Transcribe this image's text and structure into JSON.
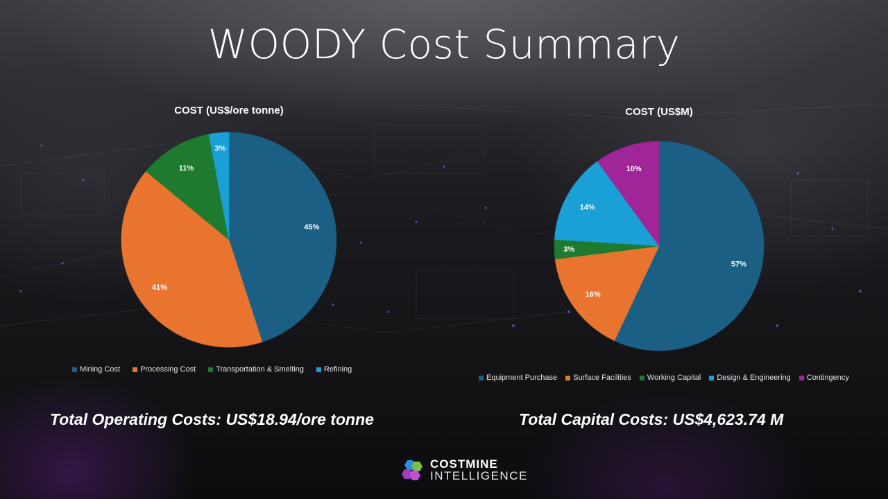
{
  "title": "WOODY Cost Summary",
  "totals": {
    "operating": "Total Operating Costs: US$18.94/ore tonne",
    "capital": "Total Capital Costs: US$4,623.74 M"
  },
  "logo": {
    "line1": "COSTMINE",
    "line2": "INTELLIGENCE",
    "icon": "costmine-hexagon-logo-icon"
  },
  "chart_data": [
    {
      "type": "pie",
      "title": "COST (US$/ore tonne)",
      "categories": [
        "Mining Cost",
        "Processing Cost",
        "Transportation & Smelting",
        "Refining"
      ],
      "values": [
        45,
        41,
        11,
        3
      ],
      "labels": [
        "45%",
        "41%",
        "11%",
        "3%"
      ],
      "colors": [
        "#1b5f84",
        "#e8742f",
        "#1e7a2e",
        "#1a9fd6"
      ],
      "legend": "bottom"
    },
    {
      "type": "pie",
      "title": "COST (US$M)",
      "categories": [
        "Equipment Purchase",
        "Surface Facilities",
        "Working Capital",
        "Design & Engineering",
        "Contingency"
      ],
      "values": [
        57,
        16,
        3,
        14,
        10
      ],
      "labels": [
        "57%",
        "16%",
        "3%",
        "14%",
        "10%"
      ],
      "colors": [
        "#1b5f84",
        "#e8742f",
        "#1e7a2e",
        "#1a9fd6",
        "#a02598"
      ],
      "legend": "bottom"
    }
  ]
}
